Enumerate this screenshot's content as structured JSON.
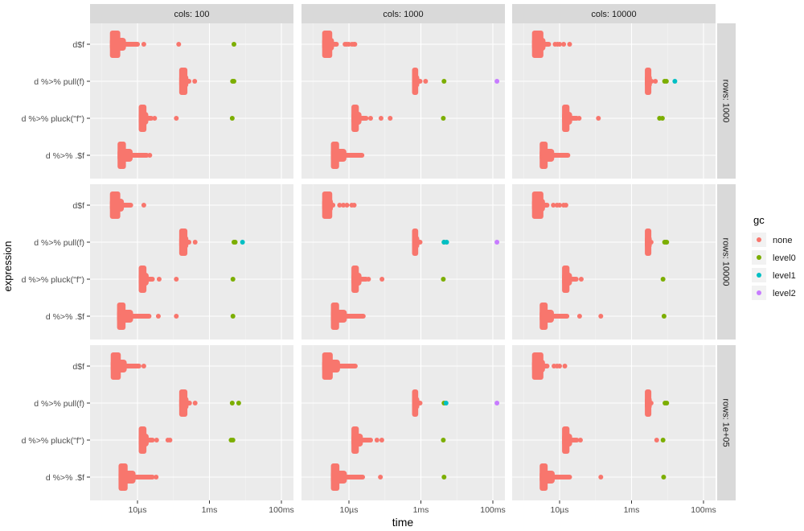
{
  "chart_data": {
    "type": "scatter",
    "xlabel": "time",
    "ylabel": "expression",
    "x_scale": "log10",
    "x_ticks": [
      {
        "value": 1e-05,
        "label": "10µs"
      },
      {
        "value": 0.001,
        "label": "1ms"
      },
      {
        "value": 0.1,
        "label": "100ms"
      }
    ],
    "y_categories": [
      "d$f",
      "d %>% pull(f)",
      "d %>% pluck(\"f\")",
      "d %>% .$f"
    ],
    "col_facets": [
      "cols: 100",
      "cols: 1000",
      "cols: 10000"
    ],
    "row_facets": [
      "rows: 1000",
      "rows: 10000",
      "rows: 1e+05"
    ],
    "legend": {
      "title": "gc",
      "position": "right",
      "entries": [
        {
          "label": "none",
          "color": "#F8766D"
        },
        {
          "label": "level0",
          "color": "#7CAE00"
        },
        {
          "label": "level1",
          "color": "#00BFC4"
        },
        {
          "label": "level2",
          "color": "#C77CFF"
        }
      ]
    },
    "grid": true,
    "note": "each series: none-range [min, max] in seconds plus outlier points",
    "panels": [
      {
        "row": 0,
        "col": 0,
        "series": [
          {
            "expr": "d$f",
            "none_range": [
              1.9e-06,
              3e-06
            ],
            "tail_end": 1e-05,
            "outliers": [
              [
                "none",
                1.5e-05
              ],
              [
                "none",
                0.00014
              ],
              [
                "level0",
                0.0048
              ]
            ]
          },
          {
            "expr": "d %>% pull(f)",
            "none_range": [
              0.00016,
              0.00022
            ],
            "tail_end": 0.00027,
            "outliers": [
              [
                "none",
                0.00039
              ],
              [
                "level0",
                0.0044
              ],
              [
                "level0",
                0.0048
              ]
            ]
          },
          {
            "expr": "d %>% pluck(\"f\")",
            "none_range": [
              1.2e-05,
              1.6e-05
            ],
            "tail_end": 2.4e-05,
            "outliers": [
              [
                "none",
                3e-05
              ],
              [
                "none",
                0.00012
              ],
              [
                "level0",
                0.0043
              ]
            ]
          },
          {
            "expr": "d %>% .$f",
            "none_range": [
              3.1e-06,
              4.3e-06
            ],
            "tail_end": 1.8e-05,
            "outliers": [
              [
                "none",
                2.2e-05
              ]
            ]
          }
        ]
      },
      {
        "row": 0,
        "col": 1,
        "series": [
          {
            "expr": "d$f",
            "none_range": [
              2e-06,
              3.1e-06
            ],
            "tail_end": 4.5e-06,
            "outliers": [
              [
                "none",
                7.8e-06
              ],
              [
                "none",
                8.7e-06
              ],
              [
                "none",
                9.9e-06
              ],
              [
                "none",
                1.22e-05
              ],
              [
                "none",
                1.38e-05
              ],
              [
                "none",
                1.46e-05
              ]
            ]
          },
          {
            "expr": "d %>% pull(f)",
            "none_range": [
              0.00063,
              0.00076
            ],
            "tail_end": 0.00095,
            "outliers": [
              [
                "none",
                0.00135
              ],
              [
                "level0",
                0.0044
              ],
              [
                "level2",
                0.13
              ]
            ]
          },
          {
            "expr": "d %>% pluck(\"f\")",
            "none_range": [
              1.3e-05,
              1.7e-05
            ],
            "tail_end": 3e-05,
            "outliers": [
              [
                "none",
                4e-05
              ],
              [
                "none",
                7.8e-05
              ],
              [
                "none",
                0.00014
              ],
              [
                "level0",
                0.0042
              ]
            ]
          },
          {
            "expr": "d %>% .$f",
            "none_range": [
              3.5e-06,
              4.8e-06
            ],
            "tail_end": 2.3e-05,
            "outliers": []
          }
        ]
      },
      {
        "row": 0,
        "col": 2,
        "series": [
          {
            "expr": "d$f",
            "none_range": [
              1.9e-06,
              3.2e-06
            ],
            "tail_end": 5e-06,
            "outliers": [
              [
                "none",
                7.5e-06
              ],
              [
                "none",
                8.7e-06
              ],
              [
                "none",
                1e-05
              ],
              [
                "none",
                1.3e-05
              ],
              [
                "none",
                1.9e-05
              ]
            ]
          },
          {
            "expr": "d %>% pull(f)",
            "none_range": [
              0.0026,
              0.0032
            ],
            "tail_end": 0.0036,
            "outliers": [
              [
                "none",
                0.0046
              ],
              [
                "level0",
                0.0083
              ],
              [
                "level0",
                0.0093
              ],
              [
                "level1",
                0.016
              ]
            ]
          },
          {
            "expr": "d %>% pluck(\"f\")",
            "none_range": [
              1.3e-05,
              1.7e-05
            ],
            "tail_end": 3e-05,
            "outliers": [
              [
                "none",
                3.5e-05
              ],
              [
                "none",
                0.00012
              ],
              [
                "level0",
                0.006
              ],
              [
                "level0",
                0.0072
              ]
            ]
          },
          {
            "expr": "d %>% .$f",
            "none_range": [
              3.1e-06,
              4.2e-06
            ],
            "tail_end": 1.7e-05,
            "outliers": []
          }
        ]
      },
      {
        "row": 1,
        "col": 0,
        "series": [
          {
            "expr": "d$f",
            "none_range": [
              1.9e-06,
              3e-06
            ],
            "tail_end": 6.5e-06,
            "outliers": [
              [
                "none",
                1.5e-05
              ]
            ]
          },
          {
            "expr": "d %>% pull(f)",
            "none_range": [
              0.00016,
              0.00022
            ],
            "tail_end": 0.00027,
            "outliers": [
              [
                "none",
                0.0004
              ],
              [
                "level0",
                0.0048
              ],
              [
                "level0",
                0.0052
              ],
              [
                "level1",
                0.0083
              ]
            ]
          },
          {
            "expr": "d %>% pluck(\"f\")",
            "none_range": [
              1.2e-05,
              1.6e-05
            ],
            "tail_end": 2.6e-05,
            "outliers": [
              [
                "none",
                4e-05
              ],
              [
                "none",
                0.00012
              ],
              [
                "level0",
                0.0045
              ]
            ]
          },
          {
            "expr": "d %>% .$f",
            "none_range": [
              3e-06,
              4.2e-06
            ],
            "tail_end": 2.1e-05,
            "outliers": [
              [
                "none",
                3.8e-05
              ],
              [
                "none",
                0.00012
              ],
              [
                "level0",
                0.0045
              ]
            ]
          }
        ]
      },
      {
        "row": 1,
        "col": 1,
        "series": [
          {
            "expr": "d$f",
            "none_range": [
              2e-06,
              3.1e-06
            ],
            "tail_end": 3.6e-06,
            "outliers": [
              [
                "none",
                5.5e-06
              ],
              [
                "none",
                7e-06
              ],
              [
                "none",
                8.8e-06
              ],
              [
                "none",
                1.2e-05
              ],
              [
                "none",
                1.4e-05
              ]
            ]
          },
          {
            "expr": "d %>% pull(f)",
            "none_range": [
              0.00063,
              0.00076
            ],
            "tail_end": 0.00095,
            "outliers": [
              [
                "level0",
                0.0044
              ],
              [
                "level1",
                0.0044
              ],
              [
                "level1",
                0.0052
              ],
              [
                "level2",
                0.13
              ]
            ]
          },
          {
            "expr": "d %>% pluck(\"f\")",
            "none_range": [
              1.3e-05,
              1.7e-05
            ],
            "tail_end": 3e-05,
            "outliers": [
              [
                "none",
                3.5e-05
              ],
              [
                "none",
                8.3e-05
              ],
              [
                "level0",
                0.0042
              ]
            ]
          },
          {
            "expr": "d %>% .$f",
            "none_range": [
              3.5e-06,
              4.8e-06
            ],
            "tail_end": 2.5e-05,
            "outliers": []
          }
        ]
      },
      {
        "row": 1,
        "col": 2,
        "series": [
          {
            "expr": "d$f",
            "none_range": [
              1.9e-06,
              3.2e-06
            ],
            "tail_end": 4.5e-06,
            "outliers": [
              [
                "none",
                6.7e-06
              ],
              [
                "none",
                8.5e-06
              ],
              [
                "none",
                1e-05
              ],
              [
                "none",
                1.3e-05
              ],
              [
                "none",
                1.5e-05
              ]
            ]
          },
          {
            "expr": "d %>% pull(f)",
            "none_range": [
              0.0026,
              0.0032
            ],
            "tail_end": 0.0035,
            "outliers": [
              [
                "level0",
                0.0083
              ],
              [
                "level0",
                0.009
              ],
              [
                "level0",
                0.0095
              ]
            ]
          },
          {
            "expr": "d %>% pluck(\"f\")",
            "none_range": [
              1.3e-05,
              1.7e-05
            ],
            "tail_end": 2.9e-05,
            "outliers": [
              [
                "none",
                4e-05
              ],
              [
                "level0",
                0.0075
              ]
            ]
          },
          {
            "expr": "d %>% .$f",
            "none_range": [
              3.1e-06,
              4.2e-06
            ],
            "tail_end": 1.6e-05,
            "outliers": [
              [
                "none",
                3.6e-05
              ],
              [
                "none",
                0.00014
              ],
              [
                "level0",
                0.008
              ]
            ]
          }
        ]
      },
      {
        "row": 2,
        "col": 0,
        "series": [
          {
            "expr": "d$f",
            "none_range": [
              2e-06,
              3.1e-06
            ],
            "tail_end": 1.1e-05,
            "outliers": [
              [
                "none",
                1.5e-05
              ]
            ]
          },
          {
            "expr": "d %>% pull(f)",
            "none_range": [
              0.00016,
              0.00022
            ],
            "tail_end": 0.00028,
            "outliers": [
              [
                "none",
                0.0004
              ],
              [
                "level0",
                0.0043
              ],
              [
                "level0",
                0.0065
              ]
            ]
          },
          {
            "expr": "d %>% pluck(\"f\")",
            "none_range": [
              1.2e-05,
              1.6e-05
            ],
            "tail_end": 2.6e-05,
            "outliers": [
              [
                "none",
                3.4e-05
              ],
              [
                "none",
                7e-05
              ],
              [
                "none",
                8e-05
              ],
              [
                "level0",
                0.004
              ],
              [
                "level0",
                0.0045
              ]
            ]
          },
          {
            "expr": "d %>% .$f",
            "none_range": [
              3.3e-06,
              4.8e-06
            ],
            "tail_end": 2.6e-05,
            "outliers": [
              [
                "none",
                3.3e-05
              ]
            ]
          }
        ]
      },
      {
        "row": 2,
        "col": 1,
        "series": [
          {
            "expr": "d$f",
            "none_range": [
              2e-06,
              3.2e-06
            ],
            "tail_end": 1.5e-05,
            "outliers": []
          },
          {
            "expr": "d %>% pull(f)",
            "none_range": [
              0.00063,
              0.00076
            ],
            "tail_end": 0.00095,
            "outliers": [
              [
                "level0",
                0.0044
              ],
              [
                "level1",
                0.005
              ],
              [
                "level2",
                0.13
              ]
            ]
          },
          {
            "expr": "d %>% pluck(\"f\")",
            "none_range": [
              1.3e-05,
              1.7e-05
            ],
            "tail_end": 4e-05,
            "outliers": [
              [
                "none",
                6e-05
              ],
              [
                "none",
                8.2e-05
              ],
              [
                "level0",
                0.0042
              ]
            ]
          },
          {
            "expr": "d %>% .$f",
            "none_range": [
              3.5e-06,
              4.9e-06
            ],
            "tail_end": 2.4e-05,
            "outliers": [
              [
                "none",
                7.5e-05
              ],
              [
                "level0",
                0.0044
              ]
            ]
          }
        ]
      },
      {
        "row": 2,
        "col": 2,
        "series": [
          {
            "expr": "d$f",
            "none_range": [
              1.9e-06,
              3.2e-06
            ],
            "tail_end": 4.5e-06,
            "outliers": [
              [
                "none",
                7e-06
              ],
              [
                "none",
                8.5e-06
              ],
              [
                "none",
                1e-05
              ],
              [
                "none",
                1.4e-05
              ]
            ]
          },
          {
            "expr": "d %>% pull(f)",
            "none_range": [
              0.0026,
              0.0032
            ],
            "tail_end": 0.0035,
            "outliers": [
              [
                "level0",
                0.0085
              ],
              [
                "level0",
                0.0095
              ]
            ]
          },
          {
            "expr": "d %>% pluck(\"f\")",
            "none_range": [
              1.3e-05,
              1.7e-05
            ],
            "tail_end": 3e-05,
            "outliers": [
              [
                "none",
                3.8e-05
              ],
              [
                "none",
                0.005
              ],
              [
                "level0",
                0.0075
              ]
            ]
          },
          {
            "expr": "d %>% .$f",
            "none_range": [
              3.1e-06,
              4.2e-06
            ],
            "tail_end": 1.9e-05,
            "outliers": [
              [
                "none",
                0.00014
              ],
              [
                "level0",
                0.0078
              ]
            ]
          }
        ]
      }
    ]
  }
}
